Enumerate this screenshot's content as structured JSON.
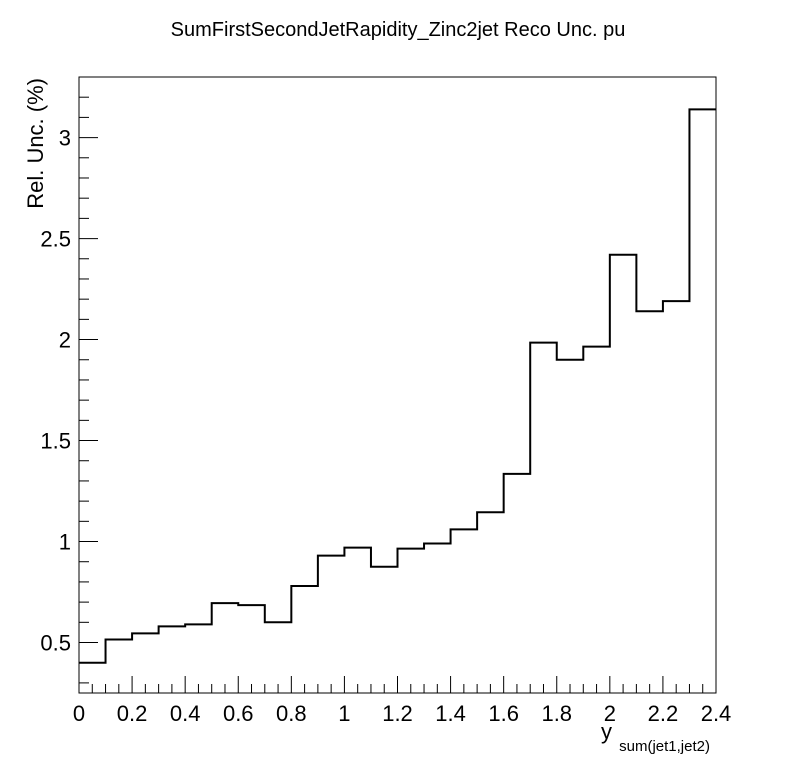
{
  "chart_data": {
    "type": "line",
    "subtype": "step-histogram",
    "title": "SumFirstSecondJetRapidity_Zinc2jet Reco Unc. pu",
    "xlabel": "y",
    "xlabel_subscript": "sum(jet1,jet2)",
    "ylabel": "Rel. Unc. (%)",
    "xlim": [
      0,
      2.4
    ],
    "ylim": [
      0.25,
      3.3
    ],
    "grid": false,
    "legend": "none",
    "line_color": "#000000",
    "x_ticks": [
      0,
      0.2,
      0.4,
      0.6,
      0.8,
      1,
      1.2,
      1.4,
      1.6,
      1.8,
      2,
      2.2,
      2.4
    ],
    "x_tick_labels": [
      "0",
      "0.2",
      "0.4",
      "0.6",
      "0.8",
      "1",
      "1.2",
      "1.4",
      "1.6",
      "1.8",
      "2",
      "2.2",
      "2.4"
    ],
    "y_ticks": [
      0.5,
      1,
      1.5,
      2,
      2.5,
      3
    ],
    "y_tick_labels": [
      "0.5",
      "1",
      "1.5",
      "2",
      "2.5",
      "3"
    ],
    "bin_edges": [
      0,
      0.1,
      0.2,
      0.3,
      0.4,
      0.5,
      0.6,
      0.7,
      0.8,
      0.9,
      1.0,
      1.1,
      1.2,
      1.3,
      1.4,
      1.5,
      1.6,
      1.7,
      1.8,
      1.9,
      2.0,
      2.1,
      2.2,
      2.3,
      2.4
    ],
    "values": [
      0.4,
      0.515,
      0.545,
      0.58,
      0.59,
      0.695,
      0.685,
      0.6,
      0.78,
      0.93,
      0.97,
      0.875,
      0.965,
      0.99,
      1.06,
      1.145,
      1.335,
      1.985,
      1.9,
      1.965,
      2.42,
      2.14,
      2.19,
      3.14
    ]
  }
}
